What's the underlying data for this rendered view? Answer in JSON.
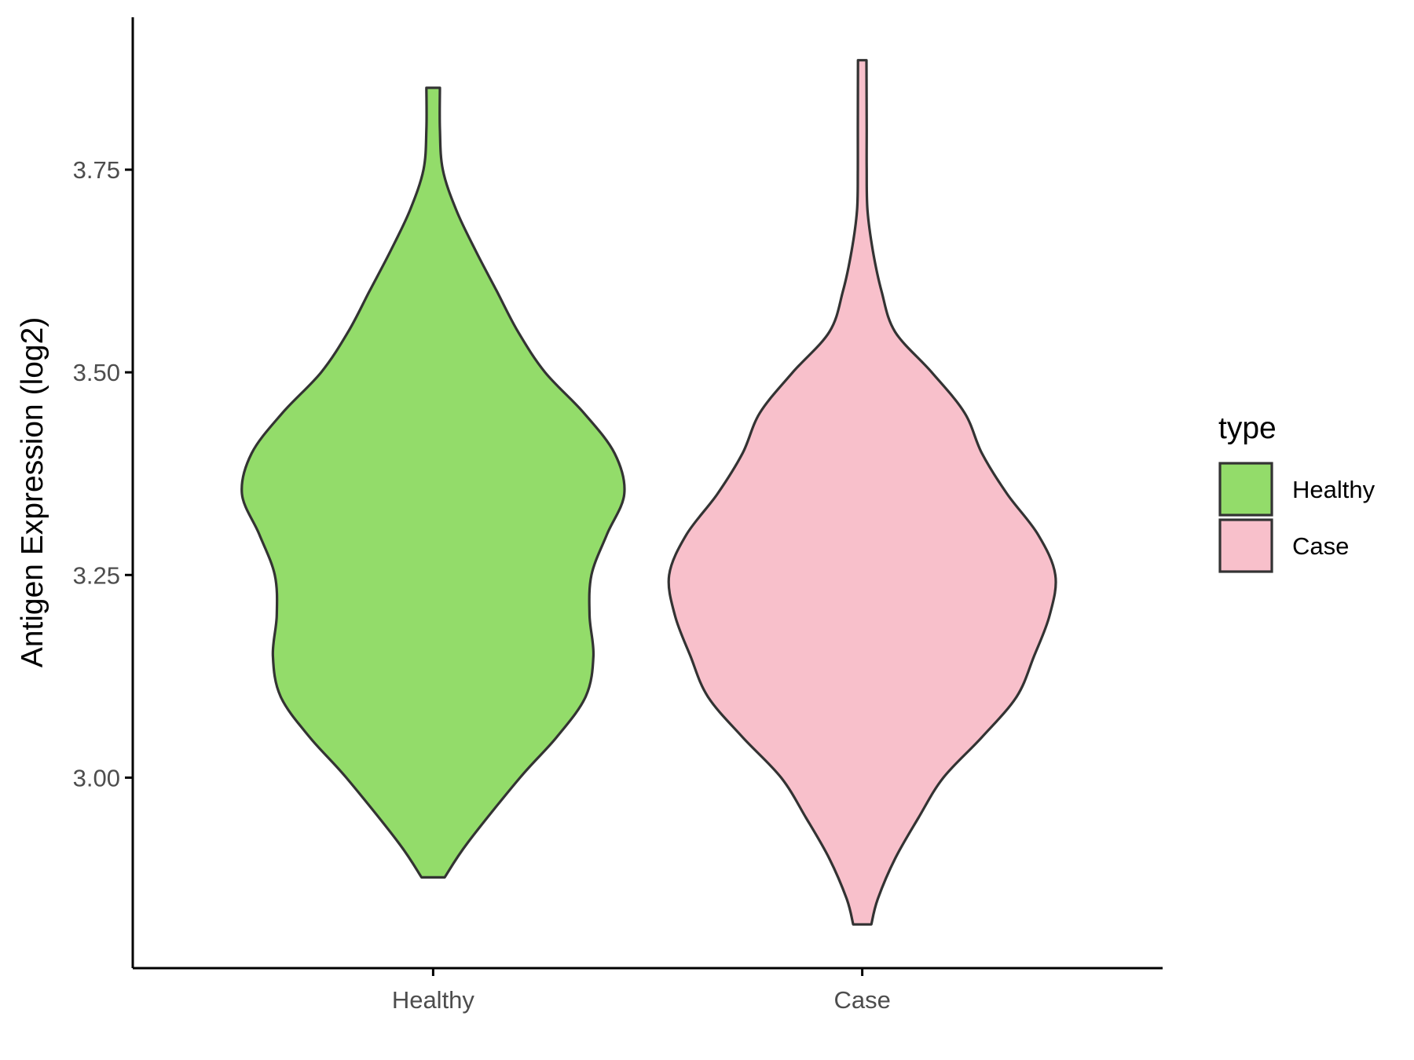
{
  "chart_data": {
    "type": "violin",
    "title": "",
    "xlabel": "",
    "ylabel": "Antigen Expression (log2)",
    "ylim": [
      2.765,
      3.938
    ],
    "yticks": [
      3.0,
      3.25,
      3.5,
      3.75
    ],
    "ytick_labels": [
      "3.00",
      "3.25",
      "3.50",
      "3.75"
    ],
    "categories": [
      "Healthy",
      "Case"
    ],
    "grid": false,
    "legend": {
      "title": "type",
      "position": "right",
      "entries": [
        {
          "label": "Healthy",
          "color": "#93dc6a"
        },
        {
          "label": "Case",
          "color": "#f8c0cb"
        }
      ]
    },
    "series": [
      {
        "category": "Healthy",
        "color": "#93dc6a",
        "min": 2.877,
        "max": 3.851,
        "profile": [
          [
            2.877,
            0.06
          ],
          [
            2.92,
            0.18
          ],
          [
            3.0,
            0.45
          ],
          [
            3.05,
            0.64
          ],
          [
            3.1,
            0.79
          ],
          [
            3.15,
            0.83
          ],
          [
            3.2,
            0.81
          ],
          [
            3.25,
            0.82
          ],
          [
            3.3,
            0.9
          ],
          [
            3.35,
            0.99
          ],
          [
            3.4,
            0.94
          ],
          [
            3.45,
            0.78
          ],
          [
            3.5,
            0.58
          ],
          [
            3.55,
            0.44
          ],
          [
            3.6,
            0.33
          ],
          [
            3.65,
            0.22
          ],
          [
            3.7,
            0.12
          ],
          [
            3.75,
            0.05
          ],
          [
            3.8,
            0.035
          ],
          [
            3.851,
            0.035
          ]
        ]
      },
      {
        "category": "Case",
        "color": "#f8c0cb",
        "min": 2.819,
        "max": 3.885,
        "profile": [
          [
            2.819,
            0.047
          ],
          [
            2.85,
            0.08
          ],
          [
            2.9,
            0.17
          ],
          [
            2.95,
            0.29
          ],
          [
            3.0,
            0.42
          ],
          [
            3.05,
            0.62
          ],
          [
            3.1,
            0.8
          ],
          [
            3.15,
            0.89
          ],
          [
            3.2,
            0.97
          ],
          [
            3.25,
            1.0
          ],
          [
            3.3,
            0.91
          ],
          [
            3.35,
            0.75
          ],
          [
            3.4,
            0.62
          ],
          [
            3.45,
            0.53
          ],
          [
            3.5,
            0.36
          ],
          [
            3.55,
            0.17
          ],
          [
            3.6,
            0.1
          ],
          [
            3.65,
            0.055
          ],
          [
            3.7,
            0.027
          ],
          [
            3.75,
            0.023
          ],
          [
            3.8,
            0.023
          ],
          [
            3.885,
            0.022
          ]
        ]
      }
    ]
  }
}
